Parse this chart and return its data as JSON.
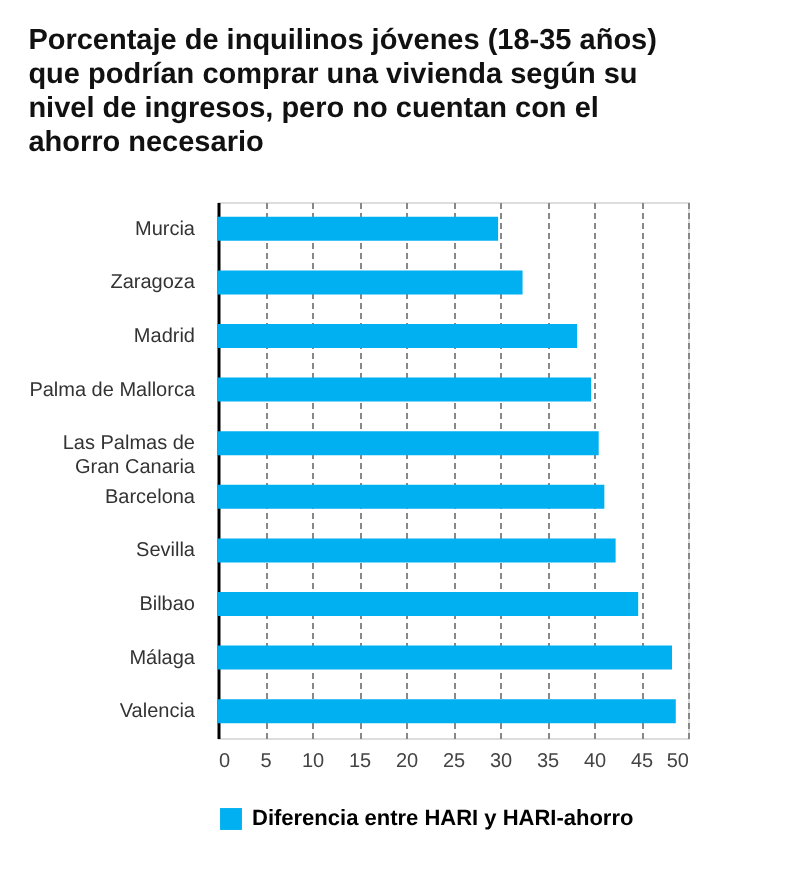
{
  "chart_data": {
    "type": "bar",
    "orientation": "horizontal",
    "title": "Porcentaje de inquilinos jóvenes (18-35 años) que podrían comprar una vivienda según su nivel de ingresos, pero no cuentan con el ahorro necesario",
    "categories": [
      "Murcia",
      "Zaragoza",
      "Madrid",
      "Palma de Mallorca",
      "Las Palmas de Gran Canaria",
      "Barcelona",
      "Sevilla",
      "Bilbao",
      "Málaga",
      "Valencia"
    ],
    "series": [
      {
        "name": "Diferencia entre HARI y HARI-ahorro",
        "color": "#00b0f0",
        "values": [
          29.8,
          32.4,
          38.2,
          39.7,
          40.5,
          41.1,
          42.3,
          44.7,
          48.3,
          48.7
        ]
      }
    ],
    "xlim": [
      0,
      50
    ],
    "xticks": [
      0,
      5,
      10,
      15,
      20,
      25,
      30,
      35,
      40,
      45,
      50
    ],
    "grid": "x",
    "legend": "bottom"
  }
}
